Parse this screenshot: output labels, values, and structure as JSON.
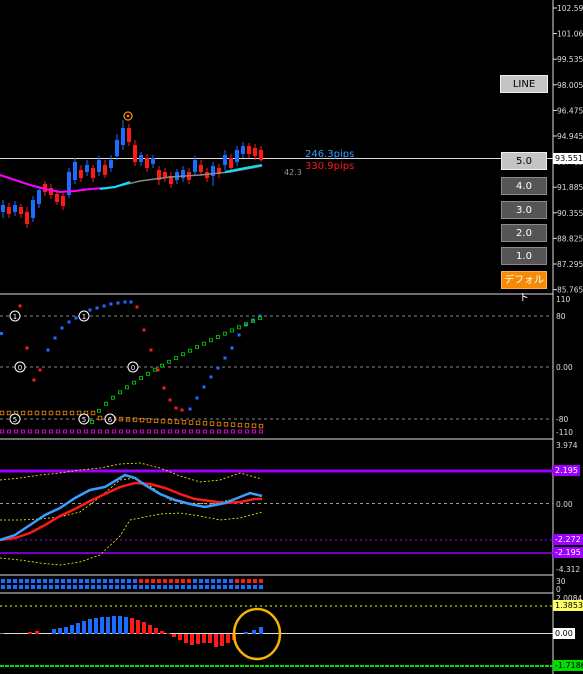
{
  "price_axis": {
    "labels": [
      "102.595",
      "101.065",
      "99.535",
      "98.005",
      "96.475",
      "94.945",
      "93.415",
      "91.885",
      "90.355",
      "88.825",
      "87.295",
      "85.765"
    ],
    "current": "93.551"
  },
  "pips": {
    "blue": "246.3pips",
    "red": "330.9pips",
    "gray": "42.3"
  },
  "buttons": {
    "line_sign": "LINE SIGN",
    "levels": [
      "5.0",
      "4.0",
      "3.0",
      "2.0",
      "1.0"
    ],
    "default": "デフォルト"
  },
  "osc1_axis": [
    "110",
    "80",
    "0.00",
    "-80",
    "-110"
  ],
  "osc2_axis": {
    "top": "3.974",
    "upper_tag": "2.195",
    "zero": "0.00",
    "lower_tag1": "-2.272",
    "lower_tag2": "-2.195",
    "bottom": "-4.312"
  },
  "dots_axis": [
    "30",
    "0"
  ],
  "hist_axis": {
    "top": "2.0084",
    "tag": "1.3853",
    "zero": "0.00",
    "bottom_tag": "-1.7186"
  },
  "signal_markers": {
    "top_label": "⊙",
    "osc1_labels": [
      "①",
      "①",
      "⓪",
      "⓪",
      "⑤",
      "⑤",
      "⑥"
    ]
  },
  "colors": {
    "up_candle": "#1e6bff",
    "down_candle": "#ff1a1a",
    "ma_magenta": "#ff00ff",
    "ma_cyan": "#00e5ff",
    "blue_line": "#3c9cff",
    "red_line": "#ff1a1a",
    "purple": "#9b00ff",
    "yellow": "#ffff00",
    "green": "#00dd00",
    "orange": "#f58a07",
    "tag_yellow": "#ffff66"
  }
}
